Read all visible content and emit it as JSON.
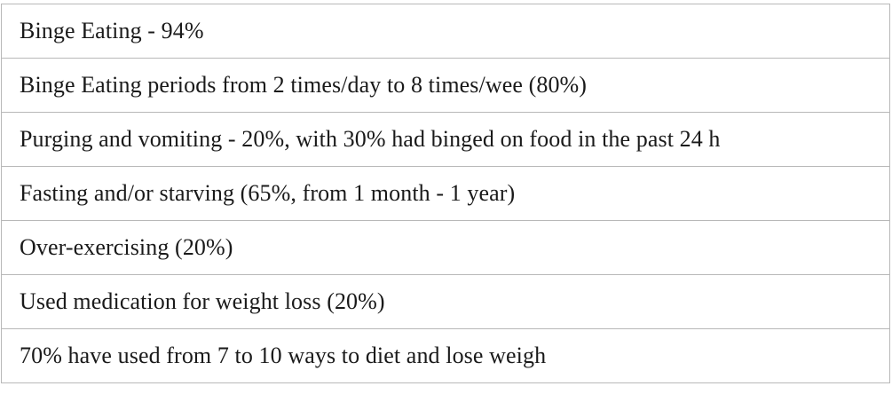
{
  "rows": [
    "Binge Eating - 94%",
    "Binge Eating periods from 2 times/day to 8 times/wee (80%)",
    "Purging and vomiting - 20%, with 30% had binged on food in the past 24 h",
    "Fasting and/or starving (65%, from 1 month - 1 year)",
    "Over-exercising (20%)",
    "Used medication for weight loss (20%)",
    "70% have used from 7 to 10 ways to diet and lose weigh"
  ]
}
